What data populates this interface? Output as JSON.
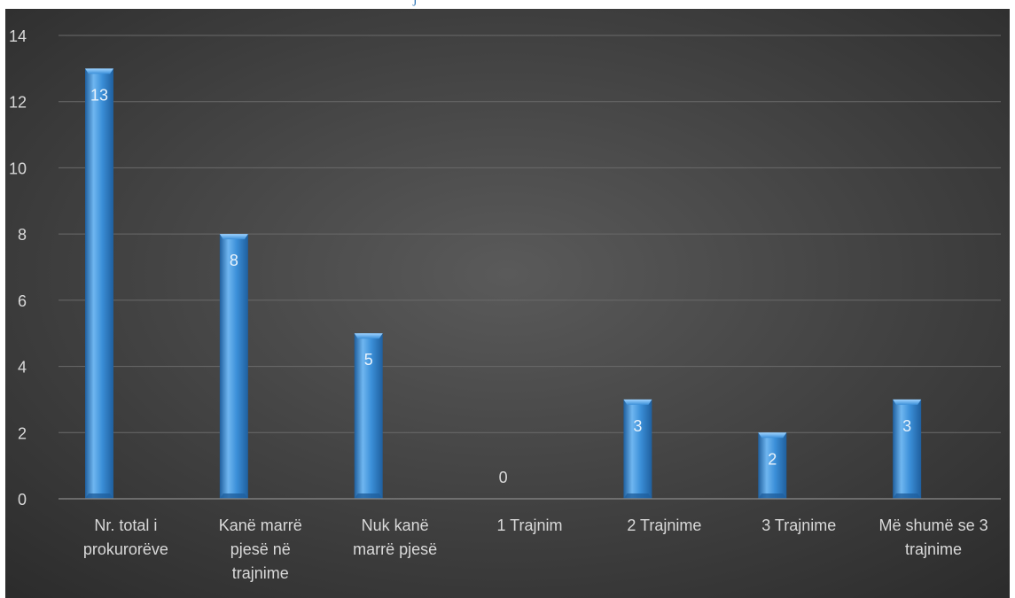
{
  "chart_data": {
    "type": "bar",
    "title": "",
    "xlabel": "",
    "ylabel": "",
    "ylim": [
      0,
      14
    ],
    "yticks": [
      0,
      2,
      4,
      6,
      8,
      10,
      12,
      14
    ],
    "grid": true,
    "legend": "none",
    "categories": [
      [
        "Nr. total i",
        "prokurorëve"
      ],
      [
        "Kanë marrë",
        "pjesë në",
        "trajnime"
      ],
      [
        "Nuk kanë",
        "marrë pjesë"
      ],
      [
        "1 Trajnim"
      ],
      [
        "2 Trajnime"
      ],
      [
        "3 Trajnime"
      ],
      [
        "Më shumë se 3",
        "trajnime"
      ]
    ],
    "values": [
      13,
      8,
      5,
      0,
      3,
      2,
      3
    ],
    "data_labels": [
      "13",
      "8",
      "5",
      "0",
      "3",
      "2",
      "3"
    ]
  },
  "colors": {
    "background_center": "#5a5a5a",
    "background_edge": "#2b2b2b",
    "bar_light": "#6fb6f0",
    "bar_mid": "#3b8fd8",
    "bar_dark": "#1f5f9e",
    "text": "#d9d9d9",
    "gridline": "#6a6a6a",
    "title_fragment": "#2e74b5"
  }
}
